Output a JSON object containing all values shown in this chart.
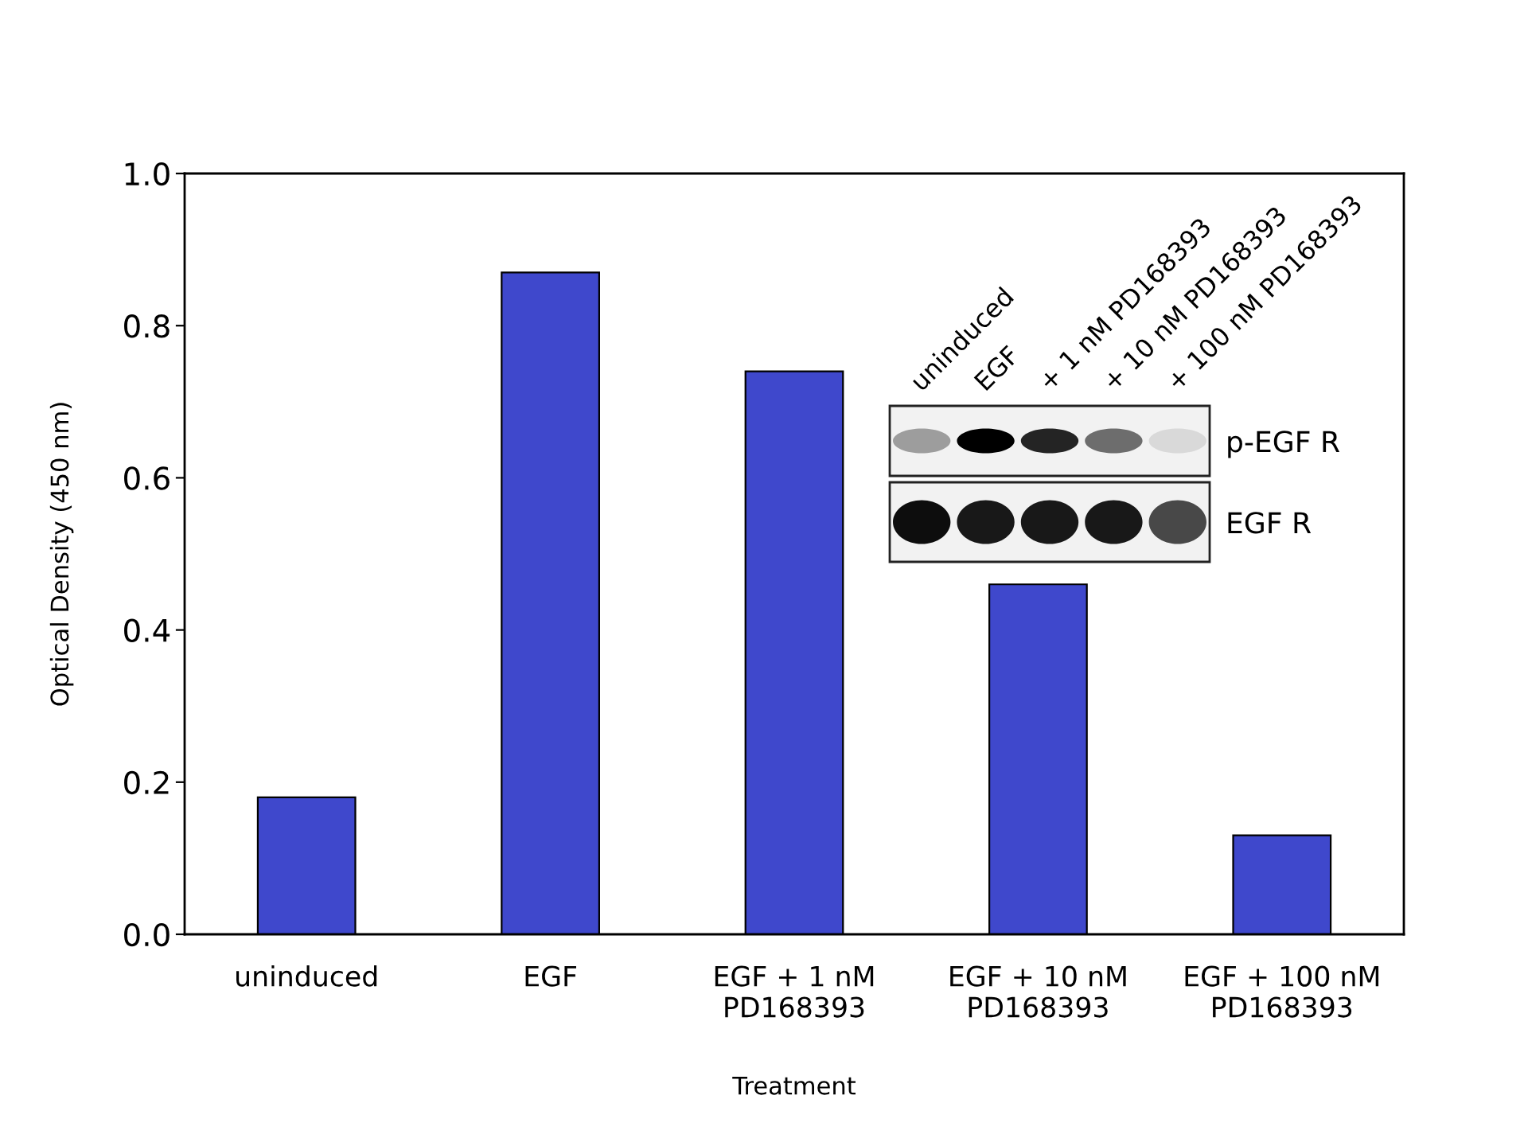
{
  "chart_data": {
    "type": "bar",
    "xlabel": "Treatment",
    "ylabel": "Optical Density (450 nm)",
    "categories": [
      "uninduced",
      "EGF",
      "EGF + 1 nM\nPD168393",
      "EGF + 10 nM\nPD168393",
      "EGF + 100 nM\nPD168393"
    ],
    "values": [
      0.18,
      0.87,
      0.74,
      0.46,
      0.13
    ],
    "color": "#3f48cc",
    "ylim": [
      0,
      1
    ],
    "yticks": [
      {
        "value": 0,
        "label": "0.0"
      },
      {
        "value": 0.2,
        "label": "0.2"
      },
      {
        "value": 0.4,
        "label": "0.4"
      },
      {
        "value": 0.6,
        "label": "0.6"
      },
      {
        "value": 0.8,
        "label": "0.8"
      },
      {
        "value": 1,
        "label": "1.0"
      }
    ],
    "grid": false,
    "annotations": [
      "uninduced",
      "EGF",
      "+ 1 nM PD168393",
      "+ 10 nM PD168393",
      "+ 100 nM PD168393",
      "p-EGF R",
      "EGF R"
    ]
  }
}
